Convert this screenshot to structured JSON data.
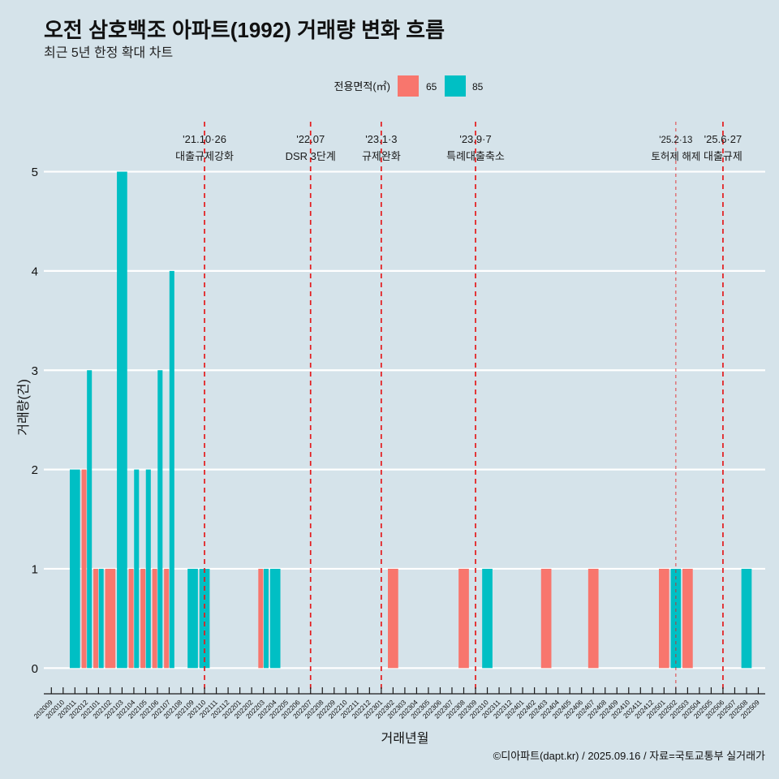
{
  "chart_data": {
    "type": "bar",
    "title": "오전 삼호백조 아파트(1992) 거래량 변화 흐름",
    "subtitle": "최근 5년 한정 확대 차트",
    "xlabel": "거래년월",
    "ylabel": "거래량(건)",
    "ylim": [
      0,
      5
    ],
    "yticks": [
      0,
      1,
      2,
      3,
      4,
      5
    ],
    "grid": "horizontal major lines",
    "legend_position": "top",
    "bar_position": "dodge",
    "legend": {
      "title": "전용면적(㎡)",
      "items": [
        {
          "label": "65",
          "color": "#F8766D"
        },
        {
          "label": "85",
          "color": "#00BFC4"
        }
      ]
    },
    "categories": [
      "202009",
      "202010",
      "202011",
      "202012",
      "202101",
      "202102",
      "202103",
      "202104",
      "202105",
      "202106",
      "202107",
      "202108",
      "202109",
      "202110",
      "202111",
      "202112",
      "202201",
      "202202",
      "202203",
      "202204",
      "202205",
      "202206",
      "202207",
      "202208",
      "202209",
      "202210",
      "202211",
      "202212",
      "202301",
      "202302",
      "202303",
      "202304",
      "202305",
      "202306",
      "202307",
      "202308",
      "202309",
      "202310",
      "202311",
      "202312",
      "202401",
      "202402",
      "202403",
      "202404",
      "202405",
      "202406",
      "202407",
      "202408",
      "202409",
      "202410",
      "202411",
      "202412",
      "202501",
      "202502",
      "202503",
      "202504",
      "202505",
      "202506",
      "202507",
      "202508",
      "202509"
    ],
    "series": [
      {
        "name": "65",
        "color": "#F8766D",
        "values": [
          0,
          0,
          0,
          2,
          1,
          1,
          0,
          1,
          1,
          1,
          1,
          0,
          0,
          0,
          0,
          0,
          0,
          0,
          1,
          0,
          0,
          0,
          0,
          0,
          0,
          0,
          0,
          0,
          0,
          1,
          0,
          0,
          0,
          0,
          0,
          1,
          0,
          0,
          0,
          0,
          0,
          0,
          1,
          0,
          0,
          0,
          1,
          0,
          0,
          0,
          0,
          0,
          1,
          0,
          1,
          0,
          0,
          0,
          0,
          0,
          0
        ]
      },
      {
        "name": "85",
        "color": "#00BFC4",
        "values": [
          0,
          0,
          2,
          3,
          1,
          0,
          5,
          2,
          2,
          3,
          4,
          0,
          1,
          1,
          0,
          0,
          0,
          0,
          1,
          1,
          0,
          0,
          0,
          0,
          0,
          0,
          0,
          0,
          0,
          0,
          0,
          0,
          0,
          0,
          0,
          0,
          0,
          1,
          0,
          0,
          0,
          0,
          0,
          0,
          0,
          0,
          0,
          0,
          0,
          0,
          0,
          0,
          0,
          1,
          0,
          0,
          0,
          0,
          0,
          1,
          0
        ]
      }
    ],
    "annotation_color": "#E41A1C",
    "annotations": [
      {
        "month": "202110",
        "date": "'21.10·26",
        "label": "대출규제강화",
        "emphasis": "primary"
      },
      {
        "month": "202207",
        "date": "'22.07",
        "label": "DSR 3단계",
        "emphasis": "primary"
      },
      {
        "month": "202301",
        "date": "'23.1·3",
        "label": "규제완화",
        "emphasis": "primary"
      },
      {
        "month": "202309",
        "date": "'23.9·7",
        "label": "특례대출축소",
        "emphasis": "primary"
      },
      {
        "month": "202502",
        "date": "'25.2·13",
        "label": "토허제 해제",
        "emphasis": "secondary"
      },
      {
        "month": "202506",
        "date": "'25.6·27",
        "label": "대출규제",
        "emphasis": "primary"
      }
    ],
    "caption": "©디아파트(dapt.kr) / 2025.09.16 / 자료=국토교통부 실거래가"
  }
}
